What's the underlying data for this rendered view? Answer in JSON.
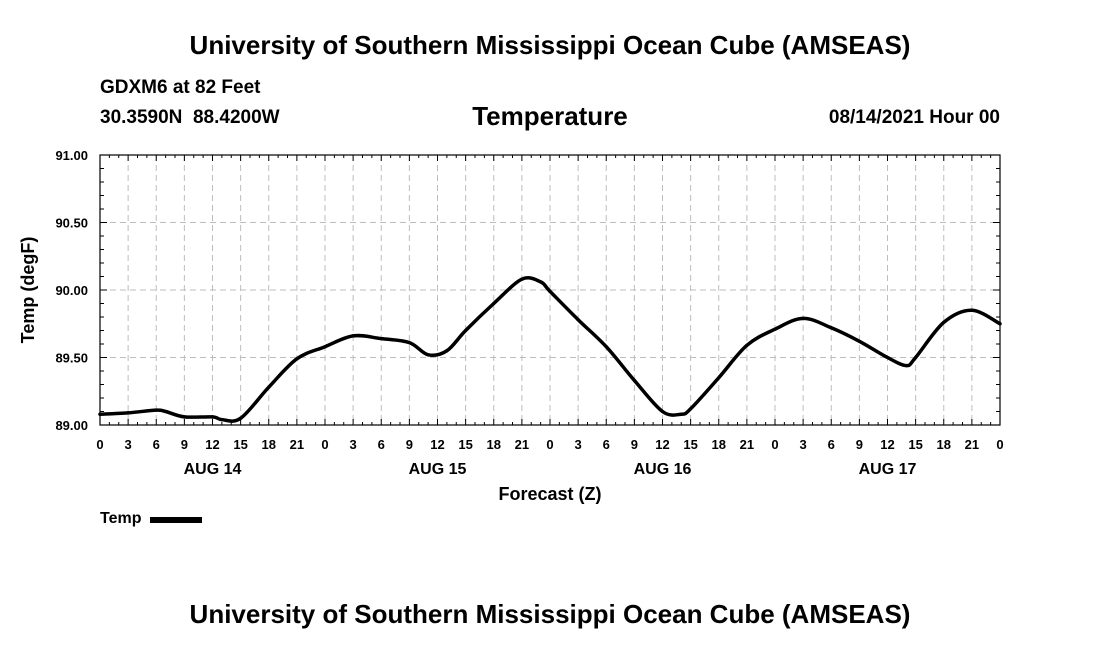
{
  "header": {
    "title": "University of Southern Mississippi Ocean Cube (AMSEAS)",
    "station": "GDXM6 at 82 Feet",
    "coords": "30.3590N  88.4200W",
    "chart_title": "Temperature",
    "datetime": "08/14/2021 Hour 00"
  },
  "footer": {
    "title": "University of Southern Mississippi Ocean Cube (AMSEAS)"
  },
  "legend": {
    "label": "Temp"
  },
  "chart_data": {
    "type": "line",
    "title": "Temperature",
    "xlabel": "Forecast (Z)",
    "ylabel": "Temp (degF)",
    "ylim": [
      89.0,
      91.0
    ],
    "xlim": [
      0,
      96
    ],
    "yticks": [
      "89.00",
      "89.50",
      "90.00",
      "90.50",
      "91.00"
    ],
    "ytick_values": [
      89.0,
      89.5,
      90.0,
      90.5,
      91.0
    ],
    "xtick_labels": [
      "0",
      "3",
      "6",
      "9",
      "12",
      "15",
      "18",
      "21",
      "0",
      "3",
      "6",
      "9",
      "12",
      "15",
      "18",
      "21",
      "0",
      "3",
      "6",
      "9",
      "12",
      "15",
      "18",
      "21",
      "0",
      "3",
      "6",
      "9",
      "12",
      "15",
      "18",
      "21",
      "0"
    ],
    "day_labels": [
      {
        "label": "AUG 14",
        "hour": 12
      },
      {
        "label": "AUG 15",
        "hour": 36
      },
      {
        "label": "AUG 16",
        "hour": 60
      },
      {
        "label": "AUG 17",
        "hour": 84
      }
    ],
    "grid": true,
    "series": [
      {
        "name": "Temp",
        "x": [
          0,
          3,
          6,
          7,
          9,
          12,
          13,
          15,
          18,
          21,
          24,
          27,
          30,
          33,
          35,
          37,
          39,
          42,
          45,
          47,
          48,
          51,
          54,
          57,
          60,
          62,
          63,
          66,
          69,
          72,
          75,
          78,
          81,
          84,
          86,
          87,
          90,
          93,
          96
        ],
        "values": [
          89.08,
          89.09,
          89.11,
          89.1,
          89.06,
          89.06,
          89.04,
          89.05,
          89.28,
          89.49,
          89.58,
          89.66,
          89.64,
          89.61,
          89.52,
          89.55,
          89.7,
          89.9,
          90.08,
          90.06,
          89.99,
          89.78,
          89.58,
          89.33,
          89.1,
          89.08,
          89.12,
          89.35,
          89.59,
          89.71,
          89.79,
          89.72,
          89.62,
          89.5,
          89.44,
          89.5,
          89.76,
          89.85,
          89.75
        ]
      }
    ]
  }
}
